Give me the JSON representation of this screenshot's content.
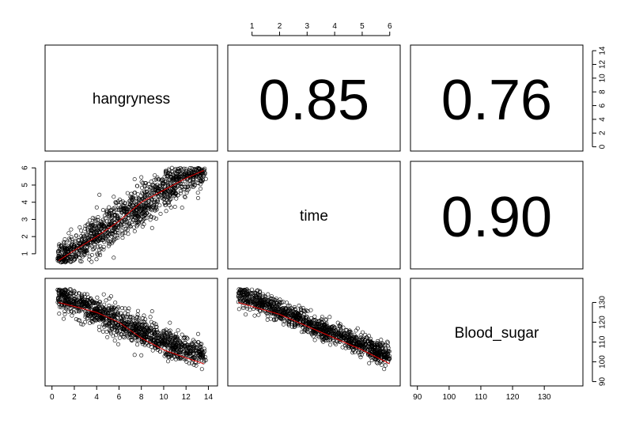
{
  "chart_data": {
    "type": "scatter",
    "title": "",
    "variables": [
      "hangryness",
      "time",
      "Blood_sugar"
    ],
    "diagonal_labels": [
      "hangryness",
      "time",
      "Blood_sugar"
    ],
    "correlations": [
      {
        "row": 0,
        "col": 1,
        "vars": [
          "hangryness",
          "time"
        ],
        "value": "0.85"
      },
      {
        "row": 0,
        "col": 2,
        "vars": [
          "hangryness",
          "Blood_sugar"
        ],
        "value": "0.76"
      },
      {
        "row": 1,
        "col": 2,
        "vars": [
          "time",
          "Blood_sugar"
        ],
        "value": "0.90"
      }
    ],
    "ranges": {
      "hangryness": [
        0.5,
        13.8
      ],
      "time": [
        0.5,
        6.0
      ],
      "Blood_sugar": [
        93,
        137
      ]
    },
    "axes": {
      "bottom_col0": {
        "variable": "hangryness",
        "ticks": [
          "0",
          "2",
          "4",
          "6",
          "8",
          "10",
          "12",
          "14"
        ]
      },
      "bottom_col2": {
        "variable": "Blood_sugar",
        "ticks": [
          "90",
          "100",
          "110",
          "120",
          "130"
        ]
      },
      "top_col1": {
        "variable": "time",
        "ticks": [
          "1",
          "2",
          "3",
          "4",
          "5",
          "6"
        ]
      },
      "left_row1": {
        "variable": "time",
        "ticks": [
          "1",
          "2",
          "3",
          "4",
          "5",
          "6"
        ]
      },
      "right_row0": {
        "variable": "hangryness",
        "ticks": [
          "0",
          "2",
          "4",
          "6",
          "8",
          "10",
          "12",
          "14"
        ]
      },
      "right_row2": {
        "variable": "Blood_sugar",
        "ticks": [
          "90",
          "100",
          "110",
          "120",
          "130"
        ]
      }
    },
    "smoothers": {
      "time_vs_hangryness": {
        "x": [
          0.6,
          2,
          4,
          6,
          8,
          10,
          12,
          13.6
        ],
        "y": [
          0.6,
          1.2,
          2.0,
          2.9,
          4.0,
          4.7,
          5.4,
          5.85
        ]
      },
      "Blood_sugar_vs_hangryness": {
        "x": [
          0.6,
          2,
          4,
          6,
          8,
          10,
          12,
          13.6
        ],
        "y": [
          130,
          128,
          125,
          120,
          112,
          106,
          102,
          99
        ]
      },
      "Blood_sugar_vs_time": {
        "x": [
          0.5,
          1,
          2,
          3,
          4,
          5,
          6
        ],
        "y": [
          130,
          128,
          124,
          118,
          112,
          106,
          99
        ]
      }
    },
    "colors": {
      "points": "#000000",
      "smoother": "#ff0000"
    },
    "grid": false,
    "legend": "none"
  }
}
